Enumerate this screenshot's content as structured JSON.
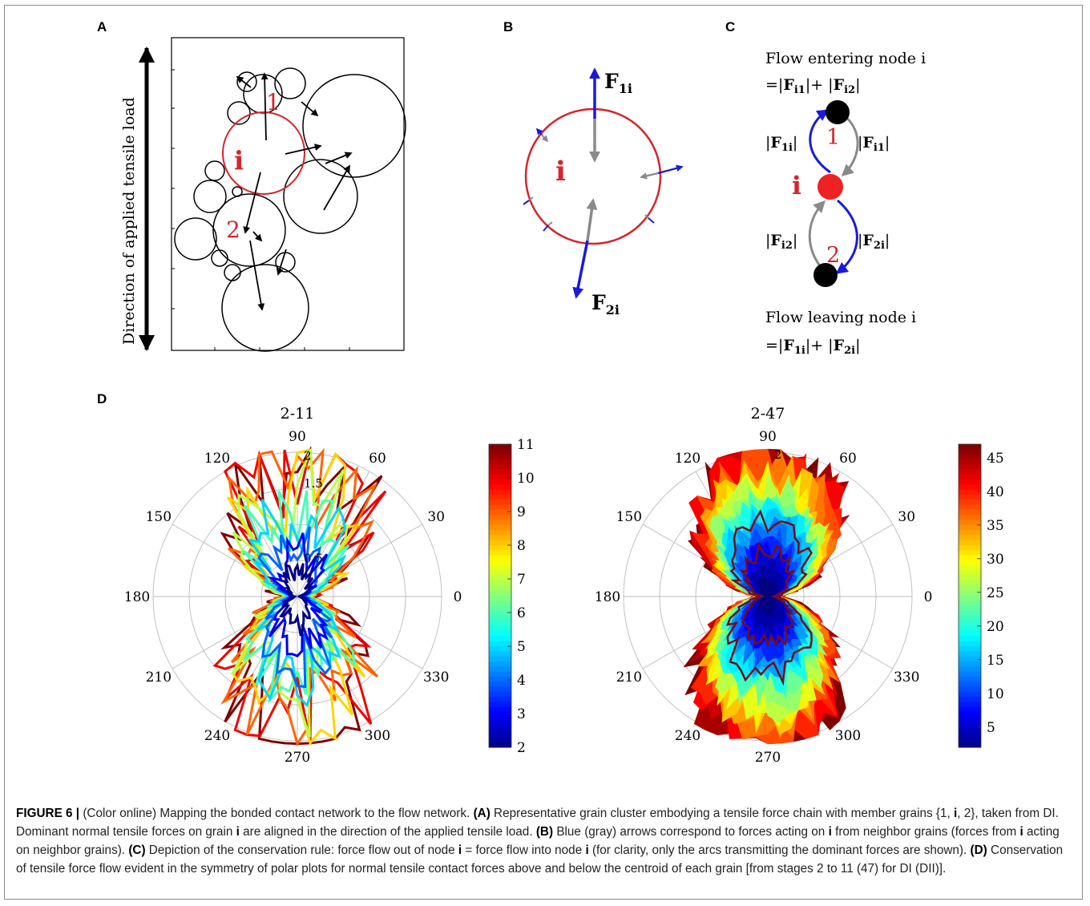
{
  "panels": {
    "a": {
      "label": "A",
      "axis_text": "Direction of applied tensile load",
      "grain_labels": {
        "one": "1",
        "i": "i",
        "two": "2"
      }
    },
    "b": {
      "label": "B",
      "grain_label": "i",
      "force_top": {
        "main": "F",
        "sub": "1i"
      },
      "force_bottom": {
        "main": "F",
        "sub": "2i"
      }
    },
    "c": {
      "label": "C",
      "enter_line1": "Flow entering node i",
      "enter_line2_prefix": "=|",
      "enter_term1": {
        "main": "F",
        "sub": "i1"
      },
      "enter_mid": "|+ |",
      "enter_term2": {
        "main": "F",
        "sub": "i2"
      },
      "enter_end": "|",
      "node_labels": {
        "top": "1",
        "middle": "i",
        "bottom": "2"
      },
      "edge_labels": {
        "upper_left": {
          "main": "F",
          "sub": "1i"
        },
        "upper_right": {
          "main": "F",
          "sub": "i1"
        },
        "lower_left": {
          "main": "F",
          "sub": "i2"
        },
        "lower_right": {
          "main": "F",
          "sub": "2i"
        }
      },
      "leave_line1": "Flow leaving node i",
      "leave_line2_prefix": "=|",
      "leave_term1": {
        "main": "F",
        "sub": "1i"
      },
      "leave_mid": "|+ |",
      "leave_term2": {
        "main": "F",
        "sub": "2i"
      },
      "leave_end": "|"
    },
    "d": {
      "label": "D"
    }
  },
  "chart_data": [
    {
      "type": "polar",
      "title": "2-11",
      "angle_ticks": [
        "0",
        "30",
        "60",
        "90",
        "120",
        "150",
        "180",
        "210",
        "240",
        "270",
        "300",
        "330"
      ],
      "radial_tick_labels": [
        "0.5",
        "1.5",
        "2"
      ],
      "colorbar_ticks": [
        "2",
        "3",
        "4",
        "5",
        "6",
        "7",
        "8",
        "9",
        "10",
        "11"
      ],
      "colorbar_range": [
        2,
        11
      ],
      "series_stages": [
        2,
        11
      ],
      "note": "forces concentrated along the 90-270 direction, increasing with stage"
    },
    {
      "type": "polar",
      "title": "2-47",
      "angle_ticks": [
        "0",
        "30",
        "60",
        "90",
        "120",
        "150",
        "180",
        "210",
        "240",
        "270",
        "300",
        "330"
      ],
      "radial_tick_labels": [
        "2"
      ],
      "colorbar_ticks": [
        "5",
        "10",
        "15",
        "20",
        "25",
        "30",
        "35",
        "40",
        "45"
      ],
      "colorbar_range": [
        2,
        47
      ],
      "series_stages": [
        2,
        47
      ]
    }
  ],
  "caption": {
    "fig": "FIGURE 6 |",
    "intro": " (Color online) Mapping the bonded contact network to the flow network. ",
    "a_tag": "(A)",
    "a_text1": " Representative grain cluster embodying a tensile force chain with member grains {1, ",
    "a_bold_i": "i",
    "a_text2": ", 2}, taken from DI. Dominant normal tensile forces on grain ",
    "a_bold_i2": "i",
    "a_text3": " are aligned in the direction of the applied tensile load. ",
    "b_tag": "(B)",
    "b_text1": " Blue (gray) arrows correspond to forces acting on ",
    "b_bold_i": "i",
    "b_text2": " from neighbor grains (forces from ",
    "b_bold_i2": "i",
    "b_text3": " acting on neighbor grains). ",
    "c_tag": "(C)",
    "c_text1": " Depiction of the conservation rule: force flow out of node ",
    "c_bold_i": "i",
    "c_text2": " = force flow into node ",
    "c_bold_i2": "i",
    "c_text3": " (for clarity, only the arcs transmitting the dominant forces are shown). ",
    "d_tag": "(D)",
    "d_text": " Conservation of tensile force flow evident in the symmetry of polar plots for normal tensile contact forces above and below the centroid of each grain [from stages 2 to 11 (47) for DI (DII)]."
  }
}
